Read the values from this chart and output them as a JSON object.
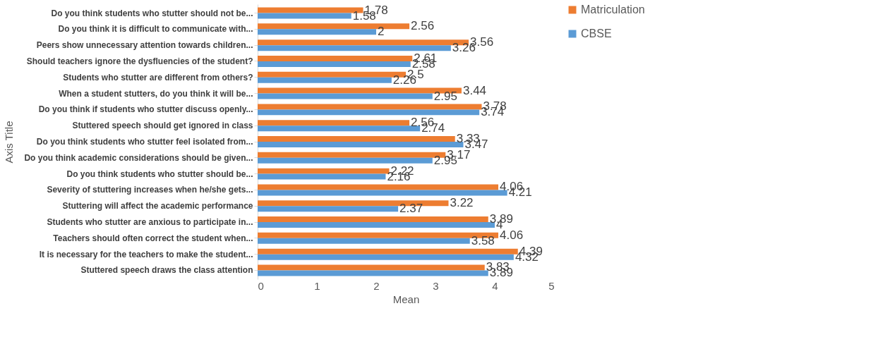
{
  "chart_data": {
    "type": "bar",
    "orientation": "horizontal",
    "xlabel": "Mean",
    "ylabel": "Axis Title",
    "categories": [
      "Do you think students who stutter should not be...",
      "Do you think it is difficult to communicate with...",
      "Peers show unnecessary attention towards children...",
      "Should teachers ignore the dysfluencies of the student?",
      "Students who stutter are different from others?",
      "When a student stutters, do you think it will be...",
      "Do you think if students who stutter discuss openly...",
      "Stuttered speech should get ignored in class",
      "Do you think students who stutter feel isolated from...",
      "Do you think academic considerations should be given...",
      "Do you think students who stutter should be...",
      "Severity of stuttering increases when he/she gets...",
      "Stuttering will affect the academic performance",
      "Students who stutter are anxious to participate in...",
      "Teachers should often correct the student when...",
      "It is necessary for the teachers to make the student...",
      "Stuttered speech draws the class attention"
    ],
    "series": [
      {
        "name": "Matriculation",
        "color": "#ed7d31",
        "values": [
          1.78,
          2.56,
          3.56,
          2.61,
          2.5,
          3.44,
          3.78,
          2.56,
          3.33,
          3.17,
          2.22,
          4.06,
          3.22,
          3.89,
          4.06,
          4.39,
          3.83
        ]
      },
      {
        "name": "CBSE",
        "color": "#5b9bd5",
        "values": [
          1.58,
          2,
          3.26,
          2.58,
          2.26,
          2.95,
          3.74,
          2.74,
          3.47,
          2.95,
          2.16,
          4.21,
          2.37,
          4,
          3.58,
          4.32,
          3.89
        ]
      }
    ],
    "xlim": [
      0,
      5
    ],
    "xticks": [
      0,
      1,
      2,
      3,
      4,
      5
    ],
    "grid": false,
    "legend": "right",
    "data_labels": true
  }
}
